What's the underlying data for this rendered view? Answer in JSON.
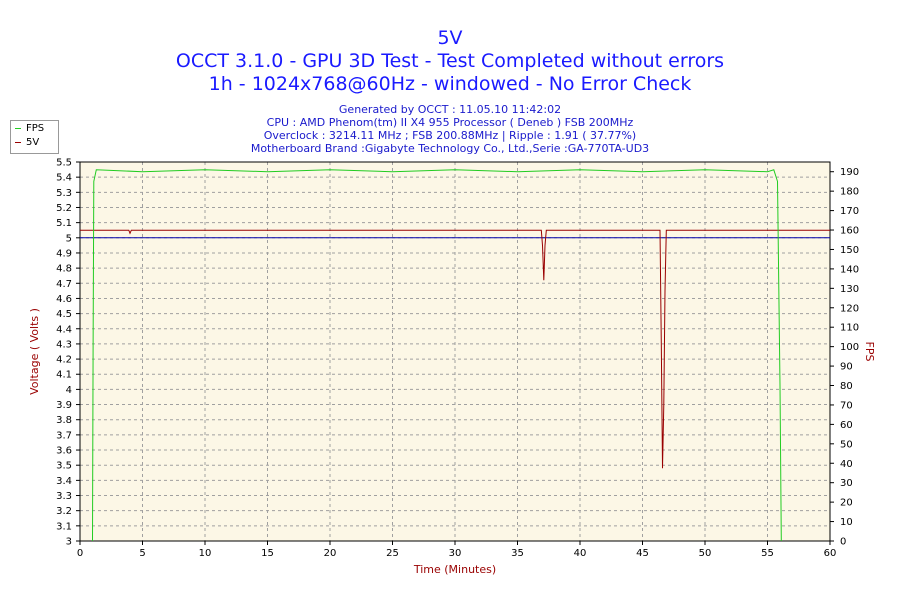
{
  "header": {
    "title": "5V",
    "subtitle_line1": "OCCT 3.1.0 - GPU 3D Test - Test Completed without errors",
    "subtitle_line2": "1h - 1024x768@60Hz - windowed - No Error Check",
    "info_generated": "Generated by OCCT : 11.05.10 11:42:02",
    "info_cpu": "CPU : AMD Phenom(tm) II X4 955 Processor ( Deneb ) FSB 200MHz",
    "info_overclock": "Overclock : 3214.11 MHz ; FSB 200.88MHz | Ripple : 1.91 ( 37.77%)",
    "info_motherboard": "Motherboard Brand :Gigabyte Technology Co., Ltd.,Serie :GA-770TA-UD3"
  },
  "legend": {
    "fps_label": "FPS",
    "fps_color": "#22cc22",
    "v5_label": "5V",
    "v5_color": "#990000"
  },
  "chart_data": {
    "type": "line",
    "xlabel": "Time (Minutes)",
    "ylabel": "Voltage ( Volts )",
    "y2label": "FPS",
    "xlim": [
      0,
      60
    ],
    "ylim": [
      3,
      5.5
    ],
    "y2lim": [
      0,
      195
    ],
    "x_ticks": [
      0,
      5,
      10,
      15,
      20,
      25,
      30,
      35,
      40,
      45,
      50,
      55,
      60
    ],
    "y_ticks": [
      "3",
      "3.1",
      "3.2",
      "3.3",
      "3.4",
      "3.5",
      "3.6",
      "3.7",
      "3.8",
      "3.9",
      "4",
      "4.1",
      "4.2",
      "4.3",
      "4.4",
      "4.5",
      "4.6",
      "4.7",
      "4.8",
      "4.9",
      "5",
      "5.1",
      "5.2",
      "5.3",
      "5.4",
      "5.5"
    ],
    "y2_ticks": [
      0,
      10,
      20,
      30,
      40,
      50,
      60,
      70,
      80,
      90,
      100,
      110,
      120,
      130,
      140,
      150,
      160,
      170,
      180,
      190
    ],
    "grid": true,
    "reference_line": {
      "value": 5.0,
      "axis": "left",
      "color": "#0000aa"
    },
    "series": [
      {
        "name": "5V",
        "axis": "left",
        "color": "#990000",
        "points": [
          [
            0,
            5.05
          ],
          [
            3.9,
            5.05
          ],
          [
            4.0,
            5.03
          ],
          [
            4.1,
            5.05
          ],
          [
            36.9,
            5.05
          ],
          [
            37.0,
            4.95
          ],
          [
            37.1,
            4.72
          ],
          [
            37.2,
            4.95
          ],
          [
            37.3,
            5.05
          ],
          [
            46.4,
            5.05
          ],
          [
            46.5,
            4.3
          ],
          [
            46.6,
            3.48
          ],
          [
            46.7,
            3.9
          ],
          [
            46.8,
            4.65
          ],
          [
            46.9,
            5.05
          ],
          [
            60,
            5.05
          ]
        ]
      },
      {
        "name": "FPS",
        "axis": "right",
        "color": "#22cc22",
        "points": [
          [
            1.0,
            0
          ],
          [
            1.05,
            100
          ],
          [
            1.1,
            185
          ],
          [
            1.3,
            191
          ],
          [
            5,
            190
          ],
          [
            10,
            191
          ],
          [
            15,
            190
          ],
          [
            20,
            191
          ],
          [
            25,
            190
          ],
          [
            30,
            191
          ],
          [
            35,
            190
          ],
          [
            40,
            191
          ],
          [
            45,
            190
          ],
          [
            50,
            191
          ],
          [
            55,
            190
          ],
          [
            55.5,
            191
          ],
          [
            55.8,
            185
          ],
          [
            55.9,
            130
          ],
          [
            56.0,
            80
          ],
          [
            56.1,
            0
          ]
        ]
      }
    ]
  }
}
